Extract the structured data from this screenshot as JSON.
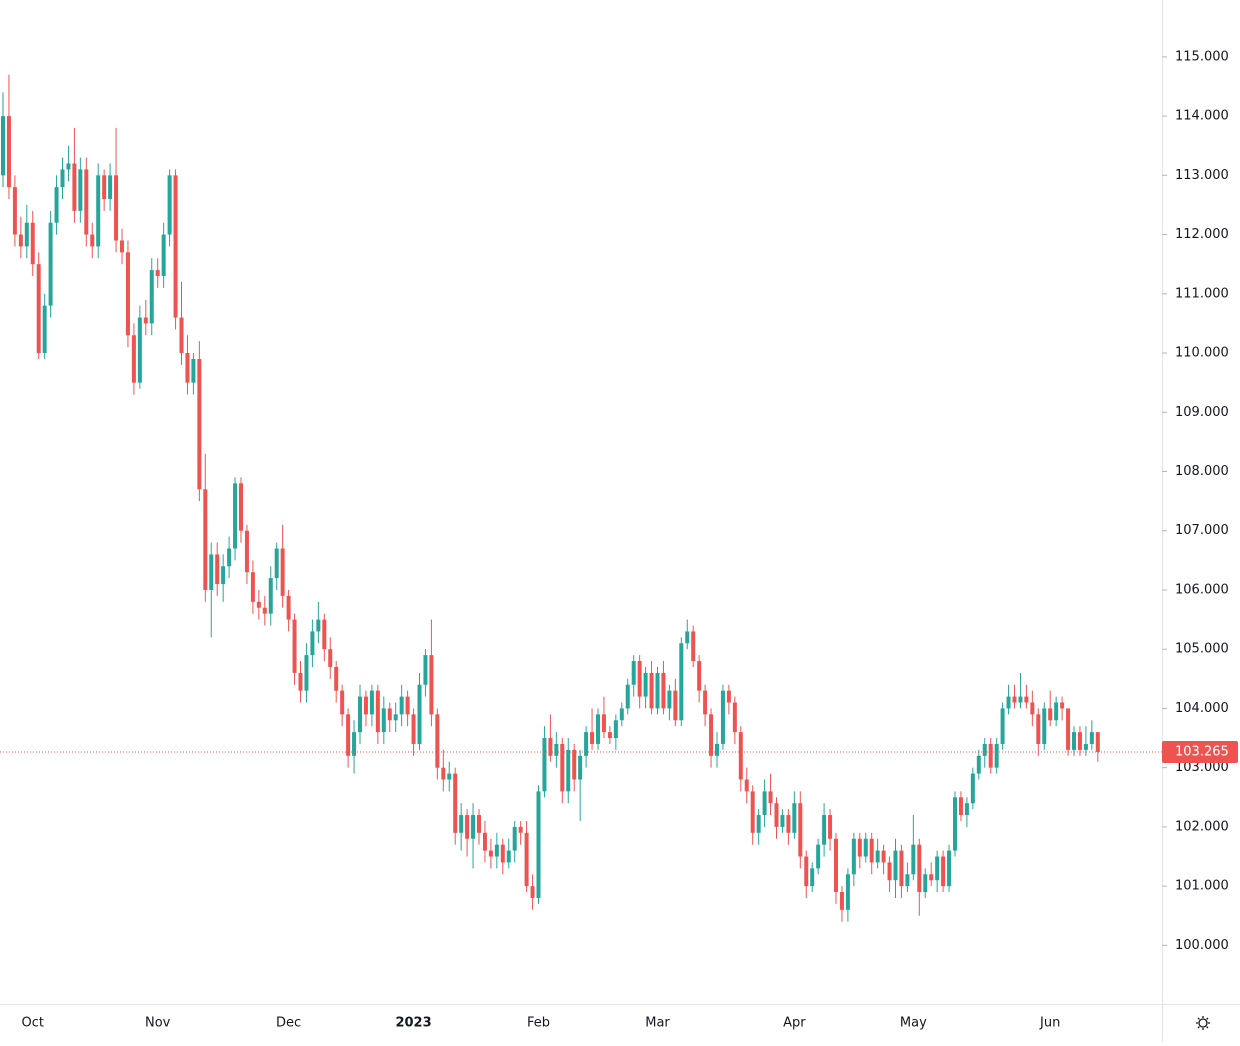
{
  "chart_data": {
    "type": "candlestick",
    "up_color": "#26a69a",
    "down_color": "#ef5350",
    "ylim": [
      99.01,
      115.96
    ],
    "yticks": [
      {
        "value": 100,
        "label": "100.000"
      },
      {
        "value": 101,
        "label": "101.000"
      },
      {
        "value": 102,
        "label": "102.000"
      },
      {
        "value": 103,
        "label": "103.000"
      },
      {
        "value": 104,
        "label": "104.000"
      },
      {
        "value": 105,
        "label": "105.000"
      },
      {
        "value": 106,
        "label": "106.000"
      },
      {
        "value": 107,
        "label": "107.000"
      },
      {
        "value": 108,
        "label": "108.000"
      },
      {
        "value": 109,
        "label": "109.000"
      },
      {
        "value": 110,
        "label": "110.000"
      },
      {
        "value": 111,
        "label": "111.000"
      },
      {
        "value": 112,
        "label": "112.000"
      },
      {
        "value": 113,
        "label": "113.000"
      },
      {
        "value": 114,
        "label": "114.000"
      },
      {
        "value": 115,
        "label": "115.000"
      }
    ],
    "last_price": {
      "value": 103.265,
      "label": "103.265"
    },
    "last_price_color": "#ef5350",
    "categories": [
      null,
      null,
      null,
      null,
      null,
      "Oct",
      null,
      null,
      null,
      null,
      null,
      null,
      null,
      null,
      null,
      null,
      null,
      null,
      null,
      null,
      null,
      null,
      null,
      null,
      null,
      null,
      "Nov",
      null,
      null,
      null,
      null,
      null,
      null,
      null,
      null,
      null,
      null,
      null,
      null,
      null,
      null,
      null,
      null,
      null,
      null,
      null,
      null,
      null,
      "Dec",
      null,
      null,
      null,
      null,
      null,
      null,
      null,
      null,
      null,
      null,
      null,
      null,
      null,
      null,
      null,
      null,
      null,
      null,
      null,
      null,
      "2023",
      null,
      null,
      null,
      null,
      null,
      null,
      null,
      null,
      null,
      null,
      null,
      null,
      null,
      null,
      null,
      null,
      null,
      null,
      null,
      null,
      "Feb",
      null,
      null,
      null,
      null,
      null,
      null,
      null,
      null,
      null,
      null,
      null,
      null,
      null,
      null,
      null,
      null,
      null,
      null,
      null,
      "Mar",
      null,
      null,
      null,
      null,
      null,
      null,
      null,
      null,
      null,
      null,
      null,
      null,
      null,
      null,
      null,
      null,
      null,
      null,
      null,
      null,
      null,
      null,
      "Apr",
      null,
      null,
      null,
      null,
      null,
      null,
      null,
      null,
      null,
      null,
      null,
      null,
      null,
      null,
      null,
      null,
      null,
      null,
      null,
      "May",
      null,
      null,
      null,
      null,
      null,
      null,
      null,
      null,
      null,
      null,
      null,
      null,
      null,
      null,
      null,
      null,
      null,
      null,
      null,
      null,
      null,
      null,
      "Jun",
      null,
      null,
      null,
      null,
      null,
      null,
      null,
      null
    ],
    "candles": [
      [
        113.0,
        114.4,
        112.8,
        114.0
      ],
      [
        114.0,
        114.7,
        112.6,
        112.8
      ],
      [
        112.8,
        113.0,
        111.8,
        112.0
      ],
      [
        112.0,
        112.3,
        111.6,
        111.8
      ],
      [
        111.8,
        112.5,
        111.6,
        112.2
      ],
      [
        112.2,
        112.4,
        111.3,
        111.5
      ],
      [
        111.5,
        111.7,
        109.9,
        110.0
      ],
      [
        110.0,
        111.0,
        109.9,
        110.8
      ],
      [
        110.8,
        112.4,
        110.6,
        112.2
      ],
      [
        112.2,
        113.0,
        112.0,
        112.8
      ],
      [
        112.8,
        113.3,
        112.6,
        113.1
      ],
      [
        113.1,
        113.5,
        112.9,
        113.2
      ],
      [
        113.2,
        113.8,
        112.2,
        112.4
      ],
      [
        112.4,
        113.3,
        112.2,
        113.1
      ],
      [
        113.1,
        113.3,
        111.8,
        112.0
      ],
      [
        112.0,
        112.2,
        111.6,
        111.8
      ],
      [
        111.8,
        113.2,
        111.6,
        113.0
      ],
      [
        113.0,
        113.1,
        112.4,
        112.6
      ],
      [
        112.6,
        113.2,
        112.4,
        113.0
      ],
      [
        113.0,
        113.8,
        111.7,
        111.9
      ],
      [
        111.9,
        112.1,
        111.5,
        111.7
      ],
      [
        111.7,
        111.9,
        110.1,
        110.3
      ],
      [
        110.3,
        110.5,
        109.3,
        109.5
      ],
      [
        109.5,
        110.8,
        109.4,
        110.6
      ],
      [
        110.6,
        110.9,
        110.3,
        110.5
      ],
      [
        110.5,
        111.6,
        110.3,
        111.4
      ],
      [
        111.4,
        111.6,
        111.1,
        111.3
      ],
      [
        111.3,
        112.2,
        111.1,
        112.0
      ],
      [
        112.0,
        113.1,
        111.8,
        113.0
      ],
      [
        113.0,
        113.1,
        110.4,
        110.6
      ],
      [
        110.6,
        111.2,
        109.8,
        110.0
      ],
      [
        110.0,
        110.3,
        109.3,
        109.5
      ],
      [
        109.5,
        110.0,
        109.3,
        109.9
      ],
      [
        109.9,
        110.2,
        107.5,
        107.7
      ],
      [
        107.7,
        108.3,
        105.8,
        106.0
      ],
      [
        106.0,
        106.8,
        105.2,
        106.6
      ],
      [
        106.6,
        106.8,
        105.9,
        106.1
      ],
      [
        106.1,
        106.6,
        105.8,
        106.4
      ],
      [
        106.4,
        106.9,
        106.2,
        106.7
      ],
      [
        106.7,
        107.9,
        106.5,
        107.8
      ],
      [
        107.8,
        107.9,
        106.8,
        107.0
      ],
      [
        107.0,
        107.1,
        106.1,
        106.3
      ],
      [
        106.3,
        106.5,
        105.6,
        105.8
      ],
      [
        105.8,
        106.0,
        105.5,
        105.7
      ],
      [
        105.7,
        105.9,
        105.4,
        105.6
      ],
      [
        105.6,
        106.4,
        105.4,
        106.2
      ],
      [
        106.2,
        106.8,
        106.0,
        106.7
      ],
      [
        106.7,
        107.1,
        105.7,
        105.9
      ],
      [
        105.9,
        106.0,
        105.3,
        105.5
      ],
      [
        105.5,
        105.6,
        104.4,
        104.6
      ],
      [
        104.6,
        104.8,
        104.1,
        104.3
      ],
      [
        104.3,
        105.1,
        104.1,
        104.9
      ],
      [
        104.9,
        105.5,
        104.7,
        105.3
      ],
      [
        105.3,
        105.8,
        105.1,
        105.5
      ],
      [
        105.5,
        105.6,
        104.8,
        105.0
      ],
      [
        105.0,
        105.2,
        104.5,
        104.7
      ],
      [
        104.7,
        104.8,
        104.1,
        104.3
      ],
      [
        104.3,
        104.4,
        103.7,
        103.9
      ],
      [
        103.9,
        104.0,
        103.0,
        103.2
      ],
      [
        103.2,
        103.8,
        102.9,
        103.6
      ],
      [
        103.6,
        104.4,
        103.4,
        104.2
      ],
      [
        104.2,
        104.3,
        103.7,
        103.9
      ],
      [
        103.9,
        104.4,
        103.7,
        104.3
      ],
      [
        104.3,
        104.4,
        103.4,
        103.6
      ],
      [
        103.6,
        104.2,
        103.4,
        104.0
      ],
      [
        104.0,
        104.1,
        103.6,
        103.8
      ],
      [
        103.8,
        104.1,
        103.6,
        103.9
      ],
      [
        103.9,
        104.4,
        103.7,
        104.2
      ],
      [
        104.2,
        104.3,
        103.7,
        103.9
      ],
      [
        103.9,
        104.0,
        103.2,
        103.4
      ],
      [
        103.4,
        104.6,
        103.3,
        104.4
      ],
      [
        104.4,
        105.0,
        104.2,
        104.9
      ],
      [
        104.9,
        105.5,
        103.7,
        103.9
      ],
      [
        103.9,
        104.0,
        102.8,
        103.0
      ],
      [
        103.0,
        103.3,
        102.6,
        102.8
      ],
      [
        102.8,
        103.1,
        102.6,
        102.9
      ],
      [
        102.9,
        103.0,
        101.7,
        101.9
      ],
      [
        101.9,
        102.4,
        101.6,
        102.2
      ],
      [
        102.2,
        102.3,
        101.5,
        101.8
      ],
      [
        101.8,
        102.4,
        101.3,
        102.2
      ],
      [
        102.2,
        102.3,
        101.7,
        101.9
      ],
      [
        101.9,
        102.1,
        101.4,
        101.6
      ],
      [
        101.6,
        101.8,
        101.3,
        101.5
      ],
      [
        101.5,
        101.9,
        101.3,
        101.7
      ],
      [
        101.7,
        101.8,
        101.2,
        101.4
      ],
      [
        101.4,
        101.8,
        101.3,
        101.6
      ],
      [
        101.6,
        102.1,
        101.4,
        102.0
      ],
      [
        102.0,
        102.1,
        101.7,
        101.9
      ],
      [
        101.9,
        102.1,
        100.9,
        101.0
      ],
      [
        101.0,
        101.2,
        100.6,
        100.8
      ],
      [
        100.8,
        102.7,
        100.7,
        102.6
      ],
      [
        102.6,
        103.7,
        102.5,
        103.5
      ],
      [
        103.5,
        103.9,
        103.1,
        103.2
      ],
      [
        103.2,
        103.6,
        103.0,
        103.4
      ],
      [
        103.4,
        103.5,
        102.4,
        102.6
      ],
      [
        102.6,
        103.5,
        102.4,
        103.3
      ],
      [
        103.3,
        103.4,
        102.6,
        102.8
      ],
      [
        102.8,
        103.3,
        102.1,
        103.2
      ],
      [
        103.2,
        103.7,
        103.0,
        103.6
      ],
      [
        103.6,
        104.0,
        103.3,
        103.4
      ],
      [
        103.4,
        104.0,
        103.3,
        103.9
      ],
      [
        103.9,
        104.2,
        103.5,
        103.6
      ],
      [
        103.6,
        103.7,
        103.4,
        103.5
      ],
      [
        103.5,
        103.9,
        103.3,
        103.8
      ],
      [
        103.8,
        104.1,
        103.7,
        104.0
      ],
      [
        104.0,
        104.5,
        103.9,
        104.4
      ],
      [
        104.4,
        104.9,
        104.2,
        104.8
      ],
      [
        104.8,
        104.9,
        104.0,
        104.2
      ],
      [
        104.2,
        104.7,
        104.0,
        104.6
      ],
      [
        104.6,
        104.8,
        103.9,
        104.0
      ],
      [
        104.0,
        104.7,
        103.9,
        104.6
      ],
      [
        104.6,
        104.8,
        103.9,
        104.0
      ],
      [
        104.0,
        104.4,
        103.8,
        104.3
      ],
      [
        104.3,
        104.5,
        103.7,
        103.8
      ],
      [
        103.8,
        105.2,
        103.7,
        105.1
      ],
      [
        105.1,
        105.5,
        105.0,
        105.3
      ],
      [
        105.3,
        105.4,
        104.7,
        104.8
      ],
      [
        104.8,
        104.9,
        104.1,
        104.3
      ],
      [
        104.3,
        104.4,
        103.7,
        103.9
      ],
      [
        103.9,
        104.0,
        103.0,
        103.2
      ],
      [
        103.2,
        103.6,
        103.0,
        103.4
      ],
      [
        103.4,
        104.4,
        103.3,
        104.3
      ],
      [
        104.3,
        104.4,
        103.9,
        104.1
      ],
      [
        104.1,
        104.2,
        103.4,
        103.6
      ],
      [
        103.6,
        103.7,
        102.6,
        102.8
      ],
      [
        102.8,
        103.0,
        102.4,
        102.6
      ],
      [
        102.6,
        102.7,
        101.7,
        101.9
      ],
      [
        101.9,
        102.3,
        101.7,
        102.2
      ],
      [
        102.2,
        102.8,
        102.0,
        102.6
      ],
      [
        102.6,
        102.9,
        102.2,
        102.4
      ],
      [
        102.4,
        102.5,
        101.8,
        102.0
      ],
      [
        102.0,
        102.3,
        101.9,
        102.2
      ],
      [
        102.2,
        102.3,
        101.7,
        101.9
      ],
      [
        101.9,
        102.6,
        101.8,
        102.4
      ],
      [
        102.4,
        102.6,
        101.3,
        101.5
      ],
      [
        101.5,
        101.6,
        100.8,
        101.0
      ],
      [
        101.0,
        101.4,
        100.9,
        101.3
      ],
      [
        101.3,
        101.8,
        101.2,
        101.7
      ],
      [
        101.7,
        102.4,
        101.5,
        102.2
      ],
      [
        102.2,
        102.3,
        101.6,
        101.8
      ],
      [
        101.8,
        101.9,
        100.7,
        100.9
      ],
      [
        100.9,
        101.0,
        100.4,
        100.6
      ],
      [
        100.6,
        101.3,
        100.4,
        101.2
      ],
      [
        101.2,
        101.9,
        101.0,
        101.8
      ],
      [
        101.8,
        101.9,
        101.3,
        101.5
      ],
      [
        101.5,
        101.9,
        101.4,
        101.8
      ],
      [
        101.8,
        101.9,
        101.2,
        101.4
      ],
      [
        101.4,
        101.8,
        101.3,
        101.6
      ],
      [
        101.6,
        101.7,
        101.2,
        101.4
      ],
      [
        101.4,
        101.5,
        100.9,
        101.1
      ],
      [
        101.1,
        101.8,
        100.8,
        101.6
      ],
      [
        101.6,
        101.7,
        100.8,
        101.0
      ],
      [
        101.0,
        101.4,
        100.9,
        101.2
      ],
      [
        101.2,
        102.2,
        101.1,
        101.7
      ],
      [
        101.7,
        101.8,
        100.5,
        100.9
      ],
      [
        100.9,
        101.3,
        100.8,
        101.2
      ],
      [
        101.2,
        101.4,
        101.0,
        101.1
      ],
      [
        101.1,
        101.6,
        100.9,
        101.5
      ],
      [
        101.5,
        101.6,
        100.9,
        101.0
      ],
      [
        101.0,
        101.7,
        100.9,
        101.6
      ],
      [
        101.6,
        102.6,
        101.5,
        102.5
      ],
      [
        102.5,
        102.6,
        102.1,
        102.2
      ],
      [
        102.2,
        102.5,
        102.0,
        102.4
      ],
      [
        102.4,
        103.0,
        102.3,
        102.9
      ],
      [
        102.9,
        103.3,
        102.8,
        103.2
      ],
      [
        103.2,
        103.5,
        103.0,
        103.4
      ],
      [
        103.4,
        103.5,
        102.9,
        103.0
      ],
      [
        103.0,
        103.5,
        102.9,
        103.4
      ],
      [
        103.4,
        104.1,
        103.3,
        104.0
      ],
      [
        104.0,
        104.4,
        103.9,
        104.2
      ],
      [
        104.2,
        104.4,
        104.0,
        104.1
      ],
      [
        104.1,
        104.6,
        104.0,
        104.2
      ],
      [
        104.2,
        104.4,
        104.0,
        104.1
      ],
      [
        104.1,
        104.3,
        103.7,
        103.9
      ],
      [
        103.9,
        104.0,
        103.2,
        103.4
      ],
      [
        103.4,
        104.1,
        103.3,
        104.0
      ],
      [
        104.0,
        104.3,
        103.7,
        103.8
      ],
      [
        103.8,
        104.2,
        103.7,
        104.1
      ],
      [
        104.1,
        104.2,
        103.8,
        104.0
      ],
      [
        104.0,
        104.0,
        103.2,
        103.3
      ],
      [
        103.3,
        103.7,
        103.2,
        103.6
      ],
      [
        103.6,
        103.7,
        103.2,
        103.3
      ],
      [
        103.3,
        103.7,
        103.2,
        103.4
      ],
      [
        103.4,
        103.8,
        103.3,
        103.6
      ],
      [
        103.6,
        103.6,
        103.1,
        103.265
      ]
    ]
  }
}
